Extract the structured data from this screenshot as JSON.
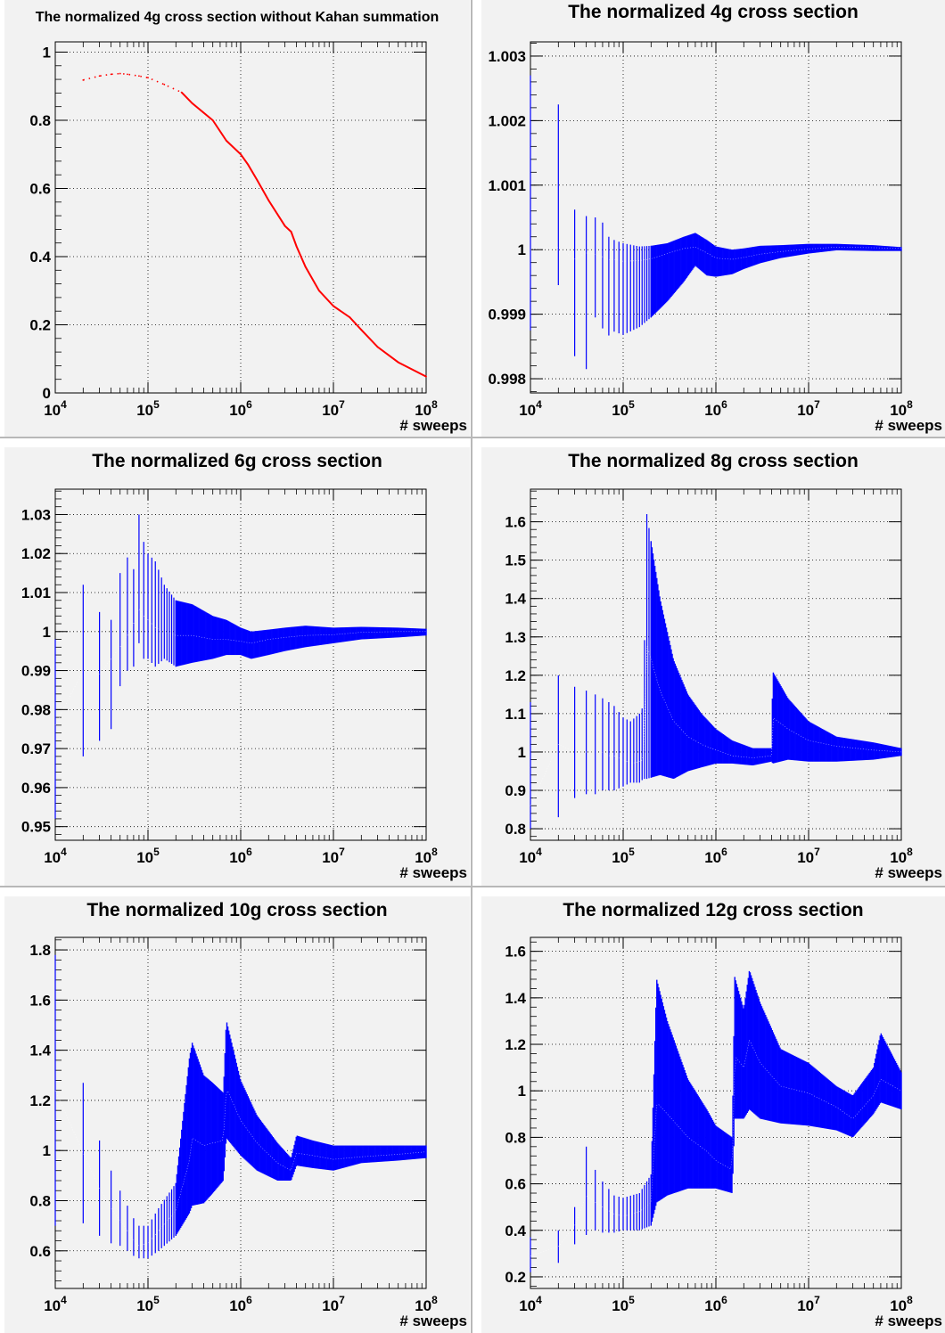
{
  "chart_data": [
    {
      "type": "line",
      "title": "The normalized 4g cross section without Kahan summation",
      "xlabel": "# sweeps",
      "ylabel": "",
      "xscale": "log",
      "xlim": [
        10000,
        100000000
      ],
      "ylim": [
        0,
        1.03
      ],
      "yticks": [
        0,
        0.2,
        0.4,
        0.6,
        0.8,
        1
      ],
      "ytick_labels": [
        "0",
        "0.2",
        "0.4",
        "0.6",
        "0.8",
        "1"
      ],
      "xtick_labels": [
        {
          "base": "10",
          "exp": "4"
        },
        {
          "base": "10",
          "exp": "5"
        },
        {
          "base": "10",
          "exp": "6"
        },
        {
          "base": "10",
          "exp": "7"
        },
        {
          "base": "10",
          "exp": "8"
        }
      ],
      "grid": true,
      "series": [
        {
          "color": "#ff0000",
          "style": "line",
          "x": [
            20000,
            30000,
            40000,
            50000,
            60000,
            80000,
            100000,
            150000,
            230000,
            300000,
            500000,
            700000,
            1000000,
            1200000,
            1500000,
            2000000,
            3000000,
            3500000,
            4000000,
            5000000,
            7000000,
            10000000,
            15000000,
            20000000,
            30000000,
            50000000,
            100000000
          ],
          "y": [
            0.918,
            0.93,
            0.935,
            0.937,
            0.935,
            0.93,
            0.925,
            0.905,
            0.882,
            0.85,
            0.8,
            0.74,
            0.7,
            0.67,
            0.625,
            0.565,
            0.49,
            0.473,
            0.43,
            0.37,
            0.3,
            0.255,
            0.222,
            0.185,
            0.135,
            0.09,
            0.048
          ]
        }
      ]
    },
    {
      "type": "line",
      "title": "The normalized 4g cross section",
      "xlabel": "# sweeps",
      "ylabel": "",
      "xscale": "log",
      "xlim": [
        10000,
        100000000
      ],
      "ylim": [
        0.99778,
        1.00322
      ],
      "yticks": [
        0.998,
        0.999,
        1,
        1.001,
        1.002,
        1.003
      ],
      "ytick_labels": [
        "0.998",
        "0.999",
        "1",
        "1.001",
        "1.002",
        "1.003"
      ],
      "xtick_labels": [
        {
          "base": "10",
          "exp": "4"
        },
        {
          "base": "10",
          "exp": "5"
        },
        {
          "base": "10",
          "exp": "6"
        },
        {
          "base": "10",
          "exp": "7"
        },
        {
          "base": "10",
          "exp": "8"
        }
      ],
      "grid": true,
      "series": [
        {
          "color": "#0000ff",
          "style": "error-band",
          "x": [
            10000,
            20000,
            30000,
            40000,
            50000,
            60000,
            70000,
            80000,
            100000,
            150000,
            200000,
            300000,
            450000,
            600000,
            800000,
            1000000,
            1500000,
            2000000,
            3000000,
            5000000,
            10000000,
            20000000,
            50000000,
            100000000
          ],
          "center": [
            1,
            1.00004,
            0.99985,
            0.99995,
            0.99993,
            0.99989,
            0.99984,
            0.99985,
            0.99982,
            0.99983,
            0.99986,
            0.99994,
            1.00002,
            1.00004,
            0.99995,
            0.99987,
            0.99985,
            0.99988,
            0.99993,
            0.99997,
            1.00001,
            1.00004,
            1.00003,
            1.00002
          ],
          "low": [
            0.99875,
            0.99945,
            0.99835,
            0.99815,
            0.99895,
            0.99878,
            0.99867,
            0.99873,
            0.99868,
            0.9988,
            0.99895,
            0.9992,
            0.9995,
            0.99975,
            0.9996,
            0.99958,
            0.99962,
            0.9997,
            0.99979,
            0.99987,
            0.99994,
            0.99999,
            0.99998,
            0.99998
          ],
          "high": [
            1.0027,
            1.00225,
            1.00062,
            1.00052,
            1.0005,
            1.00042,
            1.0002,
            1.00015,
            1.0001,
            1.00005,
            1.00006,
            1.0001,
            1.0002,
            1.00026,
            1.00015,
            1.00005,
            1.0,
            1.00002,
            1.00006,
            1.00007,
            1.00009,
            1.00009,
            1.00007,
            1.00004
          ]
        }
      ]
    },
    {
      "type": "line",
      "title": "The normalized 6g cross section",
      "xlabel": "# sweeps",
      "ylabel": "",
      "xscale": "log",
      "xlim": [
        10000,
        100000000
      ],
      "ylim": [
        0.9465,
        1.0365
      ],
      "yticks": [
        0.95,
        0.96,
        0.97,
        0.98,
        0.99,
        1,
        1.01,
        1.02,
        1.03
      ],
      "ytick_labels": [
        "0.95",
        "0.96",
        "0.97",
        "0.98",
        "0.99",
        "1",
        "1.01",
        "1.02",
        "1.03"
      ],
      "xtick_labels": [
        {
          "base": "10",
          "exp": "4"
        },
        {
          "base": "10",
          "exp": "5"
        },
        {
          "base": "10",
          "exp": "6"
        },
        {
          "base": "10",
          "exp": "7"
        },
        {
          "base": "10",
          "exp": "8"
        }
      ],
      "grid": true,
      "series": [
        {
          "color": "#0000ff",
          "style": "error-band",
          "x": [
            10000,
            20000,
            30000,
            40000,
            50000,
            60000,
            70000,
            80000,
            90000,
            100000,
            120000,
            150000,
            200000,
            300000,
            500000,
            700000,
            1000000,
            1300000,
            2000000,
            3000000,
            5000000,
            10000000,
            20000000,
            50000000,
            100000000
          ],
          "center": [
            0.976,
            0.99,
            0.989,
            0.993,
            0.996,
            0.999,
            1.002,
            1.006,
            1.004,
            1.003,
            1.001,
            1.0,
            0.999,
            0.999,
            0.998,
            0.998,
            0.9975,
            0.997,
            0.998,
            0.9985,
            0.999,
            0.9992,
            0.9998,
            1.0,
            1.0
          ],
          "low": [
            0.952,
            0.968,
            0.972,
            0.975,
            0.986,
            0.99,
            0.991,
            0.997,
            0.993,
            0.993,
            0.991,
            0.993,
            0.991,
            0.992,
            0.993,
            0.994,
            0.994,
            0.993,
            0.994,
            0.995,
            0.996,
            0.997,
            0.998,
            0.9985,
            0.999
          ],
          "high": [
            0.998,
            1.012,
            1.005,
            1.003,
            1.015,
            1.019,
            1.016,
            1.03,
            1.023,
            1.02,
            1.018,
            1.012,
            1.008,
            1.007,
            1.004,
            1.003,
            1.001,
            1.0,
            1.0005,
            1.001,
            1.0015,
            1.001,
            1.0012,
            1.001,
            1.0007
          ]
        }
      ]
    },
    {
      "type": "line",
      "title": "The normalized 8g cross section",
      "xlabel": "# sweeps",
      "ylabel": "",
      "xscale": "log",
      "xlim": [
        10000,
        100000000
      ],
      "ylim": [
        0.77,
        1.685
      ],
      "yticks": [
        0.8,
        0.9,
        1,
        1.1,
        1.2,
        1.3,
        1.4,
        1.5,
        1.6
      ],
      "ytick_labels": [
        "0.8",
        "0.9",
        "1",
        "1.1",
        "1.2",
        "1.3",
        "1.4",
        "1.5",
        "1.6"
      ],
      "xtick_labels": [
        {
          "base": "10",
          "exp": "4"
        },
        {
          "base": "10",
          "exp": "5"
        },
        {
          "base": "10",
          "exp": "6"
        },
        {
          "base": "10",
          "exp": "7"
        },
        {
          "base": "10",
          "exp": "8"
        }
      ],
      "grid": true,
      "series": [
        {
          "color": "#0000ff",
          "style": "error-band",
          "x": [
            10000,
            20000,
            30000,
            40000,
            50000,
            60000,
            70000,
            80000,
            100000,
            120000,
            150000,
            165000,
            180000,
            250000,
            350000,
            500000,
            700000,
            1000000,
            1500000,
            2500000,
            4000000,
            4100000,
            6000000,
            10000000,
            20000000,
            50000000,
            100000000
          ],
          "center": [
            0.86,
            1.02,
            1.0,
            1.0,
            1.0,
            1.0,
            0.99,
            0.99,
            0.98,
            0.97,
            0.975,
            0.98,
            1.28,
            1.16,
            1.08,
            1.04,
            1.02,
            1.005,
            0.99,
            0.985,
            0.99,
            1.09,
            1.06,
            1.03,
            1.015,
            1.005,
            1.0
          ],
          "low": [
            0.8,
            0.83,
            0.88,
            0.89,
            0.89,
            0.9,
            0.9,
            0.9,
            0.91,
            0.92,
            0.92,
            0.93,
            0.93,
            0.94,
            0.93,
            0.95,
            0.96,
            0.97,
            0.97,
            0.965,
            0.975,
            0.97,
            0.98,
            0.975,
            0.975,
            0.98,
            0.99
          ],
          "high": [
            1.13,
            1.2,
            1.17,
            1.16,
            1.15,
            1.14,
            1.13,
            1.12,
            1.09,
            1.08,
            1.1,
            1.12,
            1.62,
            1.4,
            1.24,
            1.15,
            1.1,
            1.06,
            1.03,
            1.01,
            1.01,
            1.21,
            1.14,
            1.08,
            1.04,
            1.025,
            1.01
          ]
        }
      ]
    },
    {
      "type": "line",
      "title": "The normalized 10g cross section",
      "xlabel": "# sweeps",
      "ylabel": "",
      "xscale": "log",
      "xlim": [
        10000,
        100000000
      ],
      "ylim": [
        0.45,
        1.85
      ],
      "yticks": [
        0.6,
        0.8,
        1,
        1.2,
        1.4,
        1.6,
        1.8
      ],
      "ytick_labels": [
        "0.6",
        "0.8",
        "1",
        "1.2",
        "1.4",
        "1.6",
        "1.8"
      ],
      "xtick_labels": [
        {
          "base": "10",
          "exp": "4"
        },
        {
          "base": "10",
          "exp": "5"
        },
        {
          "base": "10",
          "exp": "6"
        },
        {
          "base": "10",
          "exp": "7"
        },
        {
          "base": "10",
          "exp": "8"
        }
      ],
      "grid": true,
      "series": [
        {
          "color": "#0000ff",
          "style": "error-band",
          "x": [
            10000,
            20000,
            30000,
            40000,
            50000,
            60000,
            70000,
            80000,
            100000,
            130000,
            200000,
            280000,
            300000,
            400000,
            500000,
            650000,
            700000,
            1000000,
            1500000,
            2500000,
            3500000,
            4000000,
            6000000,
            10000000,
            20000000,
            50000000,
            100000000
          ],
          "center": [
            1.24,
            0.99,
            0.85,
            0.77,
            0.72,
            0.68,
            0.64,
            0.62,
            0.63,
            0.68,
            0.76,
            0.96,
            1.05,
            1.02,
            1.03,
            1.04,
            1.25,
            1.12,
            1.03,
            0.95,
            0.92,
            0.99,
            0.98,
            0.965,
            0.975,
            0.985,
            0.995
          ],
          "low": [
            0.7,
            0.71,
            0.66,
            0.63,
            0.62,
            0.6,
            0.58,
            0.57,
            0.57,
            0.6,
            0.66,
            0.75,
            0.78,
            0.79,
            0.83,
            0.88,
            1.05,
            0.98,
            0.92,
            0.88,
            0.88,
            0.94,
            0.93,
            0.92,
            0.95,
            0.96,
            0.97
          ],
          "high": [
            1.78,
            1.27,
            1.04,
            0.92,
            0.84,
            0.78,
            0.73,
            0.7,
            0.7,
            0.77,
            0.87,
            1.37,
            1.43,
            1.3,
            1.27,
            1.23,
            1.52,
            1.28,
            1.14,
            1.03,
            0.97,
            1.06,
            1.04,
            1.02,
            1.02,
            1.02,
            1.02
          ]
        }
      ]
    },
    {
      "type": "line",
      "title": "The normalized 12g cross section",
      "xlabel": "# sweeps",
      "ylabel": "",
      "xscale": "log",
      "xlim": [
        10000,
        100000000
      ],
      "ylim": [
        0.15,
        1.66
      ],
      "yticks": [
        0.2,
        0.4,
        0.6,
        0.8,
        1,
        1.2,
        1.4,
        1.6
      ],
      "ytick_labels": [
        "0.2",
        "0.4",
        "0.6",
        "0.8",
        "1",
        "1.2",
        "1.4",
        "1.6"
      ],
      "xtick_labels": [
        {
          "base": "10",
          "exp": "4"
        },
        {
          "base": "10",
          "exp": "5"
        },
        {
          "base": "10",
          "exp": "6"
        },
        {
          "base": "10",
          "exp": "7"
        },
        {
          "base": "10",
          "exp": "8"
        }
      ],
      "grid": true,
      "series": [
        {
          "color": "#0000ff",
          "style": "error-band",
          "x": [
            10000,
            20000,
            30000,
            40000,
            50000,
            60000,
            80000,
            100000,
            150000,
            200000,
            230000,
            300000,
            500000,
            800000,
            1000000,
            1500000,
            1600000,
            2000000,
            2300000,
            3000000,
            5000000,
            10000000,
            20000000,
            30000000,
            50000000,
            60000000,
            100000000
          ],
          "center": [
            0.29,
            0.33,
            0.42,
            0.55,
            0.52,
            0.5,
            0.47,
            0.46,
            0.48,
            0.52,
            0.95,
            0.9,
            0.8,
            0.74,
            0.7,
            0.66,
            1.15,
            1.1,
            1.22,
            1.12,
            1.02,
            0.99,
            0.93,
            0.88,
            0.98,
            1.05,
            1.0
          ],
          "low": [
            0.22,
            0.26,
            0.34,
            0.38,
            0.4,
            0.39,
            0.39,
            0.4,
            0.4,
            0.42,
            0.52,
            0.55,
            0.58,
            0.58,
            0.58,
            0.56,
            0.88,
            0.88,
            0.92,
            0.88,
            0.86,
            0.85,
            0.83,
            0.8,
            0.9,
            0.95,
            0.92
          ],
          "high": [
            0.37,
            0.4,
            0.5,
            0.76,
            0.66,
            0.61,
            0.55,
            0.54,
            0.56,
            0.64,
            1.48,
            1.3,
            1.05,
            0.92,
            0.85,
            0.8,
            1.49,
            1.35,
            1.52,
            1.38,
            1.18,
            1.12,
            1.02,
            0.98,
            1.1,
            1.25,
            1.08
          ]
        }
      ]
    }
  ]
}
